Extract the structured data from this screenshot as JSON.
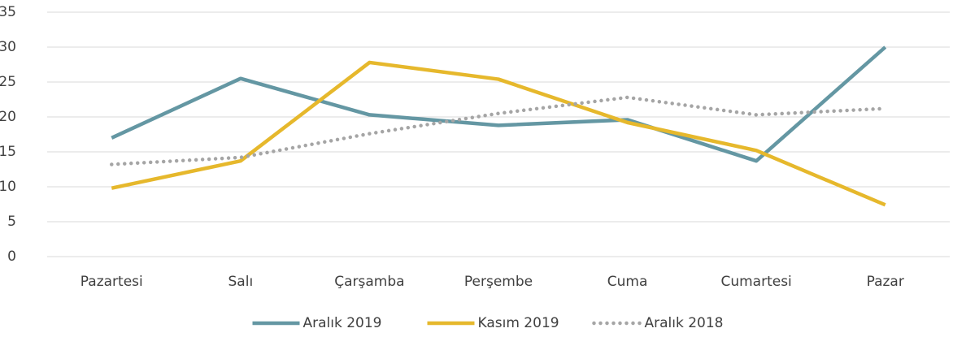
{
  "chart_data": {
    "type": "line",
    "categories": [
      "Pazartesi",
      "Salı",
      "Çarşamba",
      "Perşembe",
      "Cuma",
      "Cumartesi",
      "Pazar"
    ],
    "series": [
      {
        "name": "Aralık 2019",
        "color": "#6497a3",
        "style": "solid",
        "values": [
          17,
          25.5,
          20.3,
          18.8,
          19.6,
          13.7,
          30
        ]
      },
      {
        "name": "Kasım 2019",
        "color": "#e6b82c",
        "style": "solid",
        "values": [
          9.8,
          13.7,
          27.8,
          25.4,
          19.2,
          15.2,
          7.4
        ]
      },
      {
        "name": "Aralık 2018",
        "color": "#a5a5a5",
        "style": "dotted",
        "values": [
          13.2,
          14.2,
          17.6,
          20.5,
          22.8,
          20.3,
          21.2
        ]
      }
    ],
    "ylim": [
      0,
      35
    ],
    "yticks": [
      0,
      5,
      10,
      15,
      20,
      25,
      30,
      35
    ],
    "grid": true,
    "legend": "bottom"
  }
}
